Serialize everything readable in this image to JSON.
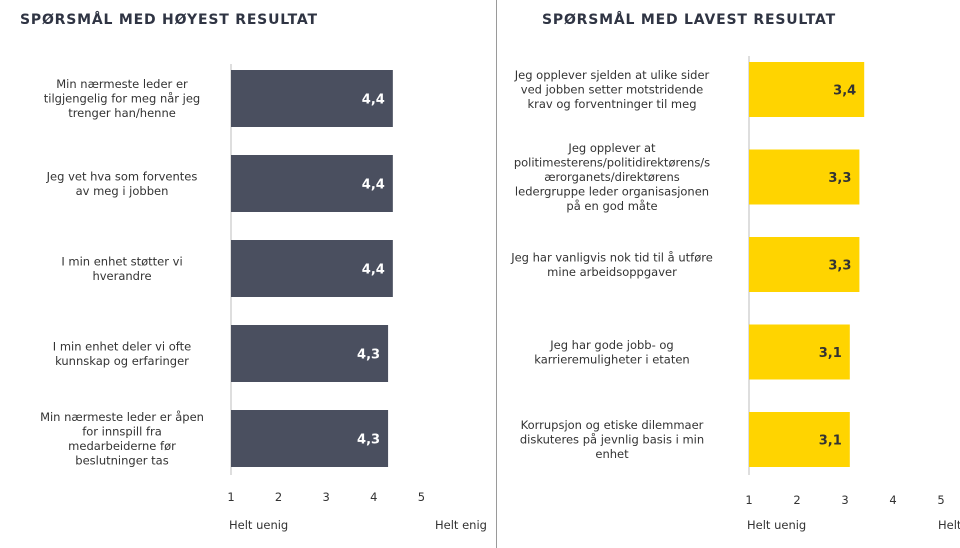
{
  "chart_data": [
    {
      "type": "bar",
      "orientation": "horizontal",
      "title": "SPØRSMÅL MED HØYEST RESULTAT",
      "color": "#4a4f5f",
      "value_label_color": "#ffffff",
      "categories": [
        [
          "Min nærmeste leder er",
          "tilgjengelig for meg når jeg",
          "trenger han/henne"
        ],
        [
          "Jeg vet hva som forventes",
          "av meg i jobben"
        ],
        [
          "I min enhet støtter vi",
          "hverandre"
        ],
        [
          "I min enhet deler vi ofte",
          "kunnskap og erfaringer"
        ],
        [
          "Min nærmeste leder er åpen",
          "for innspill fra",
          "medarbeiderne før",
          "beslutninger tas"
        ]
      ],
      "values": [
        4.4,
        4.4,
        4.4,
        4.3,
        4.3
      ],
      "value_labels": [
        "4,4",
        "4,4",
        "4,4",
        "4,3",
        "4,3"
      ],
      "xlim": [
        1,
        5
      ],
      "xticks": [
        "1",
        "2",
        "3",
        "4",
        "5"
      ],
      "scale_min_label": "Helt uenig",
      "scale_max_label": "Helt enig"
    },
    {
      "type": "bar",
      "orientation": "horizontal",
      "title": "SPØRSMÅL MED LAVEST RESULTAT",
      "color": "#ffd400",
      "value_label_color": "#333333",
      "categories": [
        [
          "Jeg opplever sjelden at ulike sider",
          "ved jobben setter motstridende",
          "krav og forventninger til meg"
        ],
        [
          "Jeg opplever at",
          "politimesterens/politidirektørens/s",
          "ærorganets/direktørens",
          "ledergruppe leder organisasjonen",
          "på en god måte"
        ],
        [
          "Jeg har vanligvis nok tid til å utføre",
          "mine arbeidsoppgaver"
        ],
        [
          "Jeg har gode jobb- og",
          "karrieremuligheter i etaten"
        ],
        [
          "Korrupsjon og etiske dilemmaer",
          "diskuteres på jevnlig basis i min",
          "enhet"
        ]
      ],
      "values": [
        3.4,
        3.3,
        3.3,
        3.1,
        3.1
      ],
      "value_labels": [
        "3,4",
        "3,3",
        "3,3",
        "3,1",
        "3,1"
      ],
      "xlim": [
        1,
        5
      ],
      "xticks": [
        "1",
        "2",
        "3",
        "4",
        "5"
      ],
      "scale_min_label": "Helt uenig",
      "scale_max_label": "Helt enig"
    }
  ]
}
